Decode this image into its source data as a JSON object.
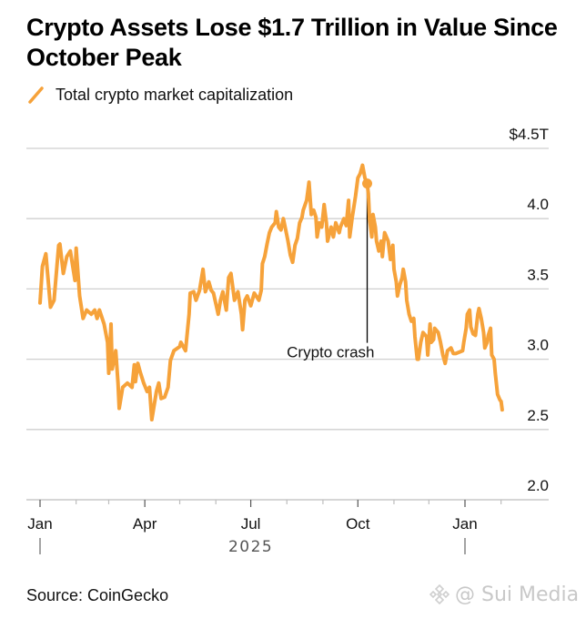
{
  "title": "Crypto Assets Lose $1.7 Trillion in Value Since October Peak",
  "legend": {
    "label": "Total crypto market capitalization",
    "icon": "orange-line-icon"
  },
  "source": "Source: CoinGecko",
  "watermark": {
    "text": "@ Sui Media",
    "icon": "binance-logo-icon"
  },
  "colors": {
    "series": "#F6A23A",
    "grid": "#CFCFCF",
    "axis": "#BDBDBD",
    "annotation": "#000000"
  },
  "chart_data": {
    "type": "line",
    "title": "Crypto Assets Lose $1.7 Trillion in Value Since October Peak",
    "xlabel": "",
    "ylabel": "",
    "x_unit": "days since 2025-01-01",
    "xlim": [
      -12,
      450
    ],
    "ylim": [
      2.0,
      4.5
    ],
    "grid": true,
    "legend_position": "top-left",
    "y_ticks": [
      {
        "value": 4.5,
        "label": "$4.5T"
      },
      {
        "value": 4.0,
        "label": "4.0"
      },
      {
        "value": 3.5,
        "label": "3.5"
      },
      {
        "value": 3.0,
        "label": "3.0"
      },
      {
        "value": 2.5,
        "label": "2.5"
      },
      {
        "value": 2.0,
        "label": "2.0"
      }
    ],
    "x_ticks": [
      {
        "day": 0,
        "label": "Jan",
        "major": true,
        "year_sep": true
      },
      {
        "day": 31,
        "label": "",
        "major": false
      },
      {
        "day": 59,
        "label": "",
        "major": false
      },
      {
        "day": 90,
        "label": "Apr",
        "major": true
      },
      {
        "day": 120,
        "label": "",
        "major": false
      },
      {
        "day": 151,
        "label": "",
        "major": false
      },
      {
        "day": 181,
        "label": "Jul",
        "major": true
      },
      {
        "day": 212,
        "label": "",
        "major": false
      },
      {
        "day": 243,
        "label": "",
        "major": false
      },
      {
        "day": 273,
        "label": "Oct",
        "major": true
      },
      {
        "day": 304,
        "label": "",
        "major": false
      },
      {
        "day": 334,
        "label": "",
        "major": false
      },
      {
        "day": 365,
        "label": "Jan",
        "major": true,
        "year_sep": true
      },
      {
        "day": 396,
        "label": "",
        "major": false
      }
    ],
    "year_label": {
      "day": 181,
      "label": "2025"
    },
    "annotation": {
      "label": "Crypto crash",
      "day": 281,
      "value": 4.25,
      "label_value": 3.0
    },
    "series": [
      {
        "name": "Total crypto market capitalization",
        "x": [
          0,
          2,
          5,
          9,
          12,
          16,
          17,
          20,
          23,
          26,
          30,
          31,
          34,
          37,
          40,
          44,
          47,
          49,
          51,
          55,
          58,
          59,
          61,
          62,
          65,
          67,
          68,
          71,
          75,
          79,
          81,
          82,
          84,
          86,
          89,
          92,
          94,
          96,
          100,
          102,
          104,
          107,
          110,
          112,
          115,
          120,
          121,
          125,
          128,
          129,
          132,
          134,
          137,
          140,
          142,
          145,
          147,
          149,
          153,
          155,
          157,
          160,
          162,
          164,
          167,
          170,
          173,
          174,
          176,
          178,
          181,
          184,
          188,
          190,
          191,
          193,
          195,
          197,
          199,
          202,
          203,
          205,
          207,
          209,
          211,
          213,
          215,
          217,
          219,
          221,
          223,
          225,
          226,
          229,
          231,
          233,
          235,
          237,
          238,
          240,
          242,
          244,
          246,
          247,
          250,
          252,
          254,
          257,
          258,
          261,
          263,
          265,
          266,
          268,
          271,
          273,
          275,
          277,
          279,
          281,
          282,
          283,
          285,
          286,
          288,
          289,
          291,
          293,
          294,
          296,
          299,
          301,
          303,
          304,
          306,
          307,
          309,
          311,
          312,
          314,
          315,
          317,
          319,
          321,
          322,
          324,
          325,
          327,
          329,
          332,
          333,
          335,
          336,
          338,
          339,
          342,
          344,
          346,
          348,
          350,
          353,
          355,
          357,
          360,
          363,
          364,
          366,
          367,
          369,
          370,
          372,
          374,
          376,
          377,
          379,
          381,
          382,
          384,
          385,
          387,
          388,
          390,
          391,
          393,
          395,
          396,
          397
        ],
        "values": [
          3.4,
          3.66,
          3.75,
          3.37,
          3.42,
          3.81,
          3.82,
          3.61,
          3.73,
          3.77,
          3.56,
          3.79,
          3.45,
          3.29,
          3.35,
          3.32,
          3.35,
          3.29,
          3.35,
          3.25,
          3.12,
          2.9,
          3.25,
          2.93,
          3.06,
          2.83,
          2.65,
          2.8,
          2.83,
          2.8,
          2.96,
          2.84,
          2.97,
          2.91,
          2.83,
          2.77,
          2.8,
          2.57,
          2.77,
          2.83,
          2.72,
          2.73,
          2.8,
          2.99,
          3.06,
          3.09,
          3.12,
          3.06,
          3.32,
          3.47,
          3.48,
          3.42,
          3.49,
          3.64,
          3.48,
          3.55,
          3.49,
          3.47,
          3.32,
          3.42,
          3.48,
          3.35,
          3.58,
          3.61,
          3.42,
          3.48,
          3.32,
          3.21,
          3.42,
          3.45,
          3.38,
          3.47,
          3.42,
          3.49,
          3.68,
          3.73,
          3.82,
          3.9,
          3.94,
          3.97,
          4.05,
          3.94,
          3.92,
          4.0,
          3.92,
          3.84,
          3.74,
          3.69,
          3.81,
          3.86,
          3.97,
          4.01,
          4.06,
          4.13,
          4.26,
          4.03,
          4.06,
          4.01,
          3.87,
          3.97,
          3.94,
          4.1,
          3.97,
          3.84,
          3.94,
          3.87,
          3.97,
          3.9,
          3.94,
          4.0,
          3.95,
          4.13,
          3.87,
          4.0,
          4.16,
          4.29,
          4.32,
          4.38,
          4.29,
          4.25,
          4.18,
          4.0,
          3.87,
          4.03,
          3.94,
          3.84,
          3.77,
          3.84,
          3.73,
          3.9,
          3.84,
          3.71,
          3.81,
          3.64,
          3.55,
          3.45,
          3.53,
          3.58,
          3.64,
          3.55,
          3.42,
          3.32,
          3.27,
          3.29,
          3.16,
          3.0,
          3.0,
          3.12,
          3.19,
          3.16,
          3.03,
          3.25,
          3.12,
          3.14,
          3.22,
          3.19,
          3.12,
          3.03,
          2.97,
          3.06,
          3.08,
          3.04,
          3.04,
          3.05,
          3.06,
          3.12,
          3.22,
          3.32,
          3.35,
          3.23,
          3.18,
          3.17,
          3.32,
          3.36,
          3.29,
          3.19,
          3.08,
          3.12,
          3.17,
          3.22,
          3.03,
          3.0,
          2.9,
          2.75,
          2.71,
          2.7,
          2.64
        ]
      }
    ]
  }
}
